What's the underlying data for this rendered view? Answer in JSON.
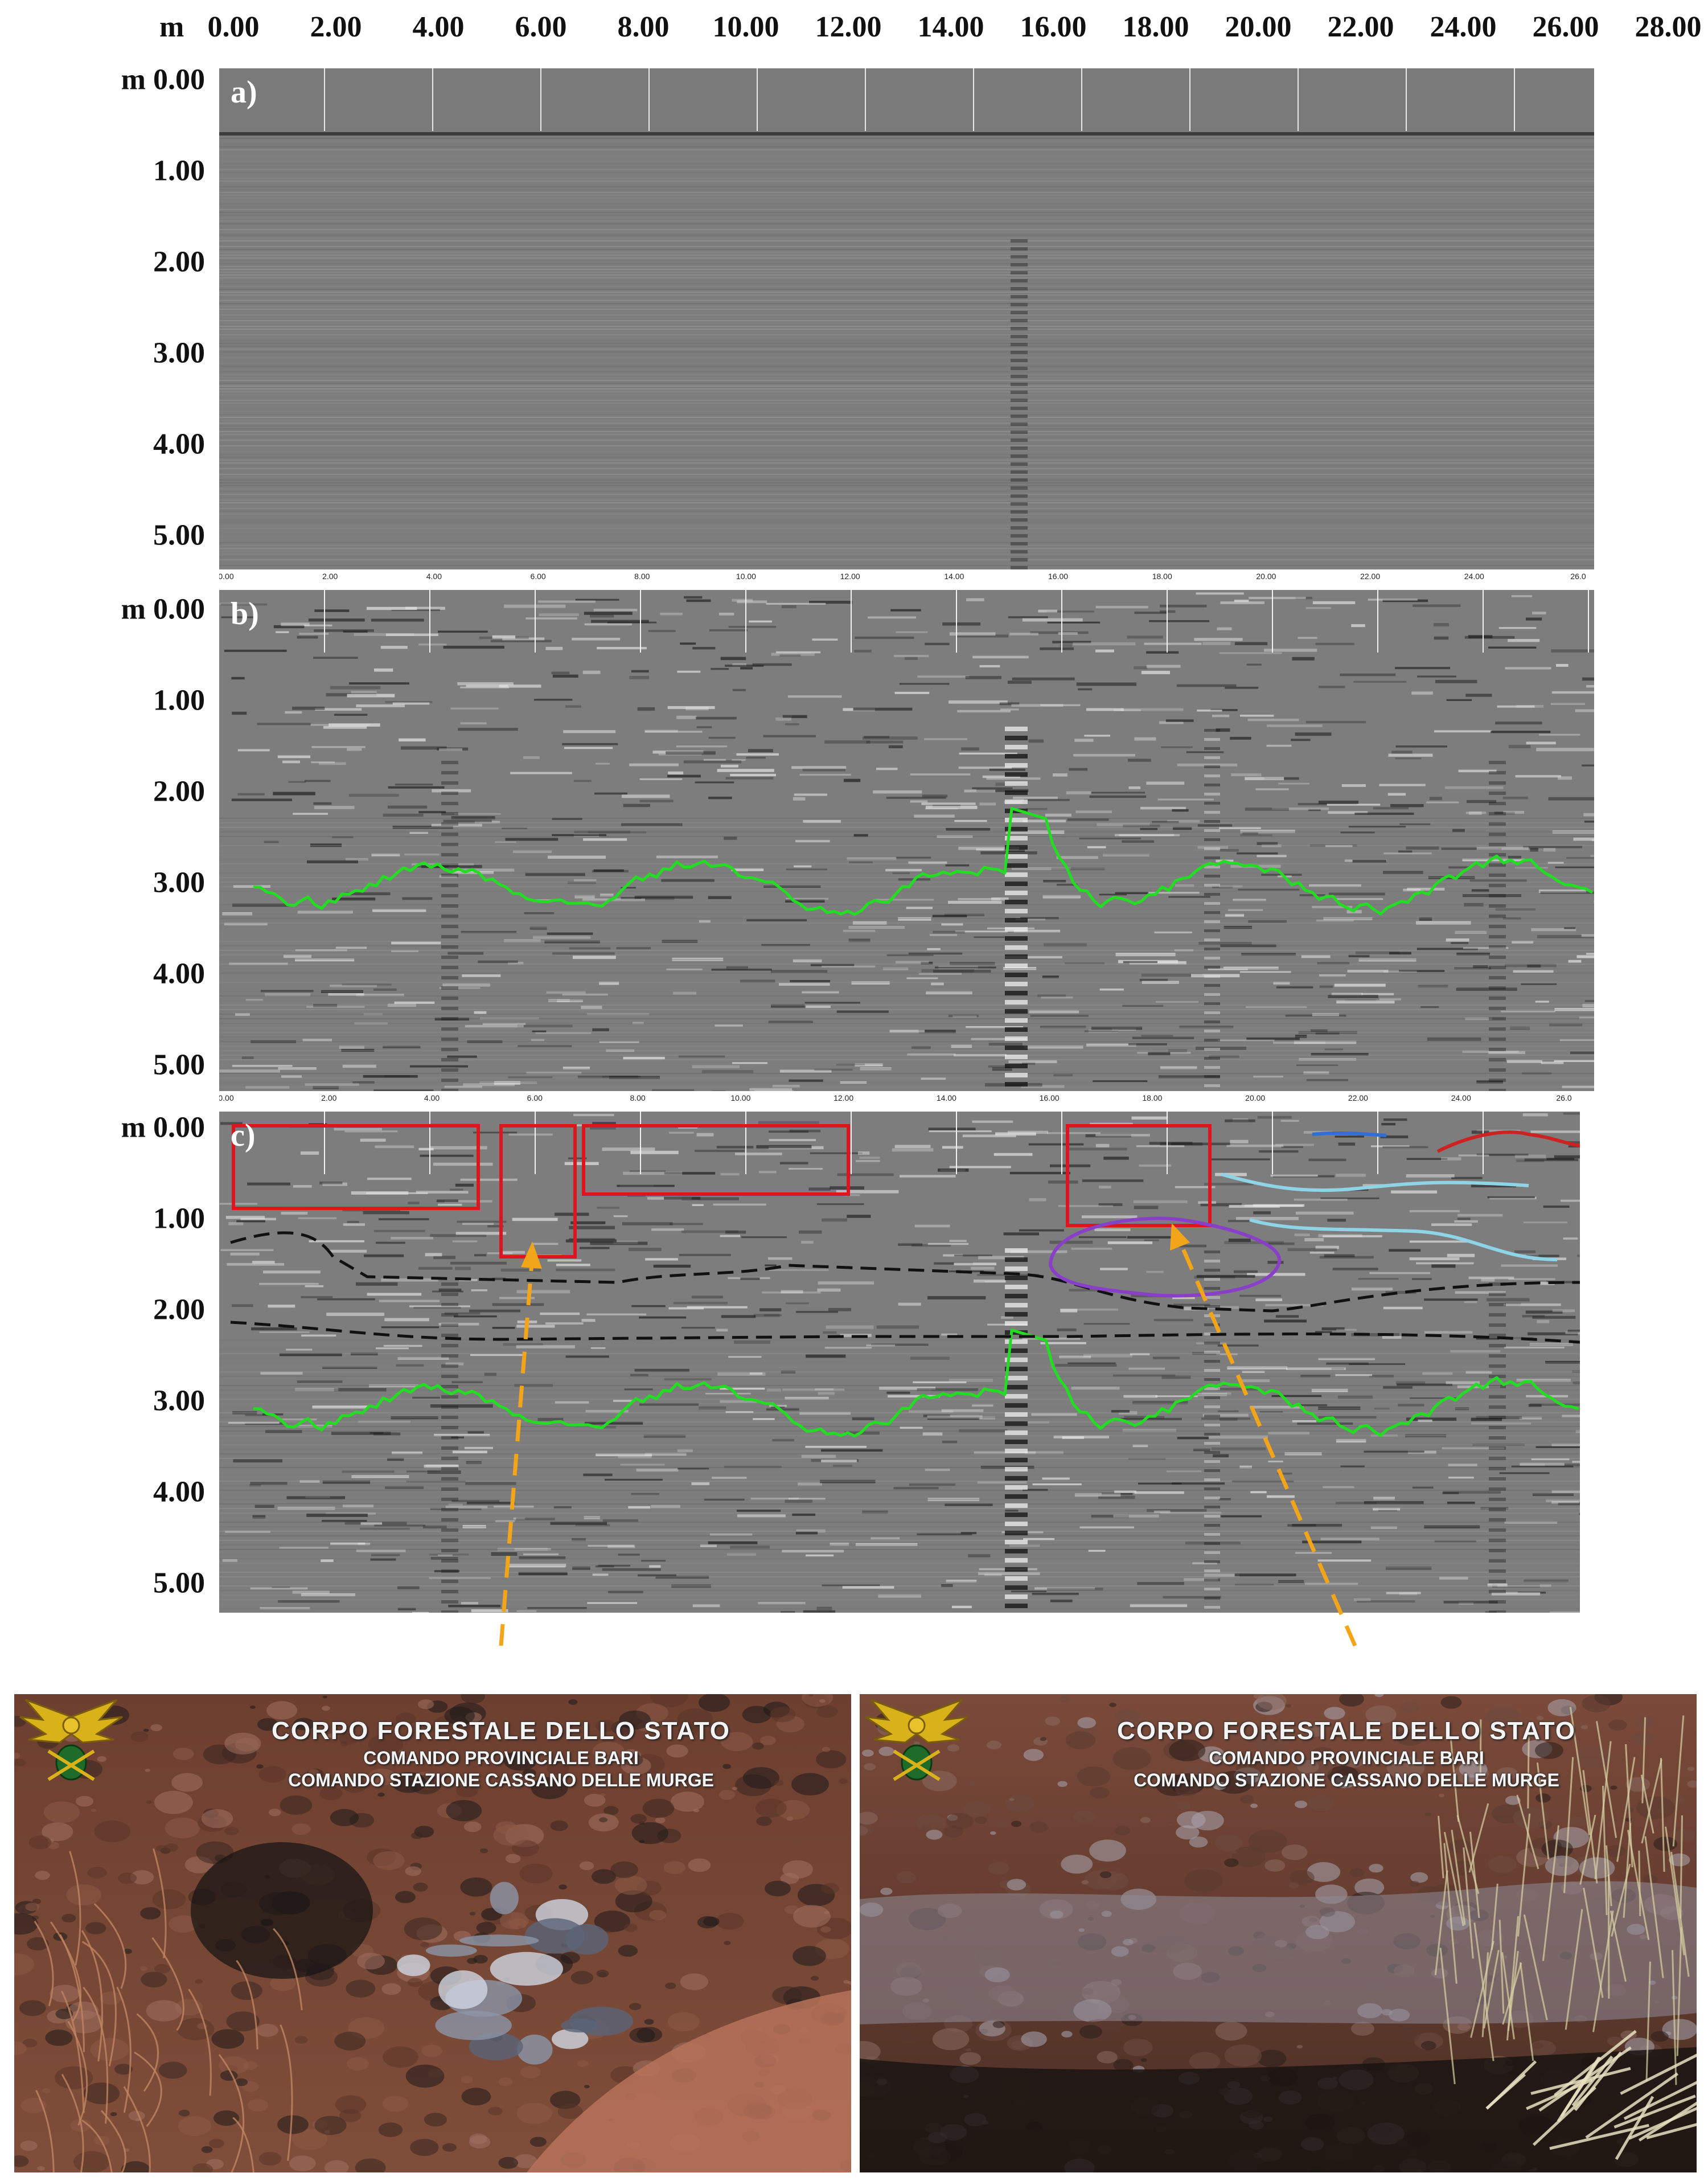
{
  "top_axis": {
    "unit": "m",
    "ticks": [
      "0.00",
      "2.00",
      "4.00",
      "6.00",
      "8.00",
      "10.00",
      "12.00",
      "14.00",
      "16.00",
      "18.00",
      "20.00",
      "22.00",
      "24.00",
      "26.00",
      "28.00"
    ]
  },
  "depth_unit": "m",
  "depth_ticks": [
    "0.00",
    "1.00",
    "2.00",
    "3.00",
    "4.00",
    "5.00"
  ],
  "mini_axis_ticks": [
    "0.00",
    "2.00",
    "4.00",
    "6.00",
    "8.00",
    "10.00",
    "12.00",
    "14.00",
    "16.00",
    "18.00",
    "20.00",
    "22.00",
    "24.00",
    "26.0"
  ],
  "panels": [
    {
      "letter": "a)"
    },
    {
      "letter": "b)"
    },
    {
      "letter": "c)"
    }
  ],
  "colors": {
    "radargram_bg": "#7d7d7d",
    "interface_line": "#22dd22",
    "dashed_horizon": "#111111",
    "anomaly_box": "#e0141e",
    "cavity_outline": "#8a3fc9",
    "thin_reflector": "#8fd3e6",
    "surface_red": "#cc2222",
    "surface_blue": "#2f6fd6",
    "arrow": "#f3a51a"
  },
  "photos": [
    {
      "watermark_line1": "CORPO FORESTALE DELLO STATO",
      "watermark_line2": "COMANDO PROVINCIALE BARI",
      "watermark_line3": "COMANDO STAZIONE CASSANO DELLE MURGE"
    },
    {
      "watermark_line1": "CORPO FORESTALE DELLO STATO",
      "watermark_line2": "COMANDO PROVINCIALE BARI",
      "watermark_line3": "COMANDO STAZIONE CASSANO DELLE MURGE"
    }
  ]
}
